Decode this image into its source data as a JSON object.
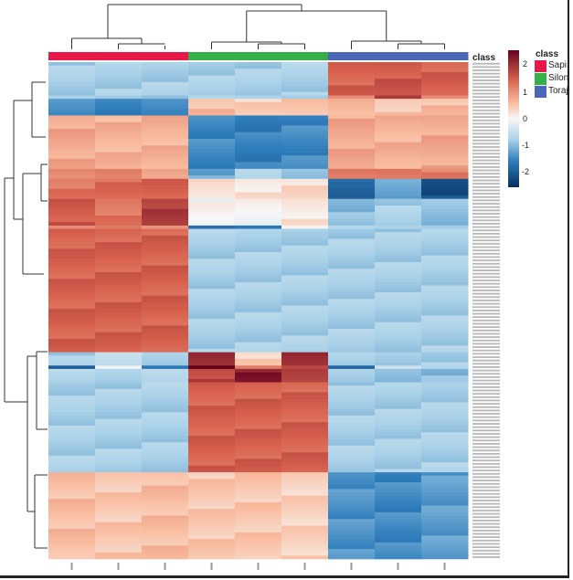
{
  "chart_data": {
    "type": "heatmap",
    "annotation_label": "class",
    "classes": [
      {
        "name": "Sapi",
        "color": "#e8194a"
      },
      {
        "name": "Silon",
        "color": "#33b04a"
      },
      {
        "name": "Toraj",
        "color": "#4c66b8"
      }
    ],
    "column_classes": [
      0,
      0,
      0,
      1,
      1,
      1,
      2,
      2,
      2
    ],
    "colorbar": {
      "ticks": [
        2,
        1,
        0,
        -1,
        -2
      ],
      "range": [
        -2.6,
        2.6
      ],
      "colors": [
        "#053061",
        "#2f7ebc",
        "#a9d1e8",
        "#f7f7f7",
        "#f9bda0",
        "#d6604d",
        "#67001f"
      ]
    },
    "row_blocks": [
      {
        "rows": 10,
        "values": [
          -0.8,
          -0.8,
          -0.8,
          -0.8,
          -0.8,
          -0.8,
          1.5,
          1.6,
          1.5
        ]
      },
      {
        "rows": 1,
        "values": [
          -0.8,
          -0.8,
          -0.8,
          -0.8,
          -0.8,
          -0.8,
          1.2,
          1.8,
          1.0
        ]
      },
      {
        "rows": 5,
        "values": [
          -1.5,
          -1.6,
          -1.4,
          0.6,
          0.4,
          0.5,
          0.7,
          0.5,
          0.6
        ]
      },
      {
        "rows": 16,
        "values": [
          0.8,
          0.7,
          0.7,
          -1.5,
          -1.6,
          -1.5,
          0.8,
          0.7,
          0.8
        ]
      },
      {
        "rows": 3,
        "values": [
          1.0,
          1.2,
          0.9,
          -1.2,
          -0.8,
          -1.0,
          1.3,
          1.4,
          1.2
        ]
      },
      {
        "rows": 6,
        "values": [
          1.3,
          1.4,
          1.5,
          0.3,
          0.2,
          0.3,
          -2.0,
          -1.2,
          -2.2
        ]
      },
      {
        "rows": 8,
        "values": [
          1.6,
          1.3,
          1.9,
          0,
          0,
          0.2,
          -1.0,
          -0.8,
          -1.0
        ]
      },
      {
        "rows": 1,
        "values": [
          1.2,
          1.1,
          0.9,
          -1.8,
          -1.6,
          0.2,
          -0.8,
          -0.8,
          -0.8
        ]
      },
      {
        "rows": 37,
        "values": [
          1.5,
          1.5,
          1.5,
          -0.8,
          -0.8,
          -0.8,
          -0.8,
          -0.8,
          -0.8
        ]
      },
      {
        "rows": 4,
        "values": [
          -0.8,
          -0.6,
          -0.8,
          2.2,
          0.4,
          2.0,
          -0.8,
          -0.8,
          -0.8
        ]
      },
      {
        "rows": 1,
        "values": [
          -2.0,
          0,
          -1.5,
          2.5,
          1.2,
          1.8,
          -1.8,
          -0.6,
          -0.8
        ]
      },
      {
        "rows": 4,
        "values": [
          -0.8,
          -0.8,
          -0.6,
          1.8,
          2.3,
          1.8,
          -0.8,
          -0.9,
          -1.0
        ]
      },
      {
        "rows": 27,
        "values": [
          -0.8,
          -0.8,
          -0.8,
          1.5,
          1.5,
          1.5,
          -0.8,
          -0.8,
          -0.8
        ]
      },
      {
        "rows": 26,
        "values": [
          0.6,
          0.5,
          0.6,
          0.5,
          0.5,
          0.4,
          -1.4,
          -1.5,
          -1.3
        ]
      }
    ]
  }
}
